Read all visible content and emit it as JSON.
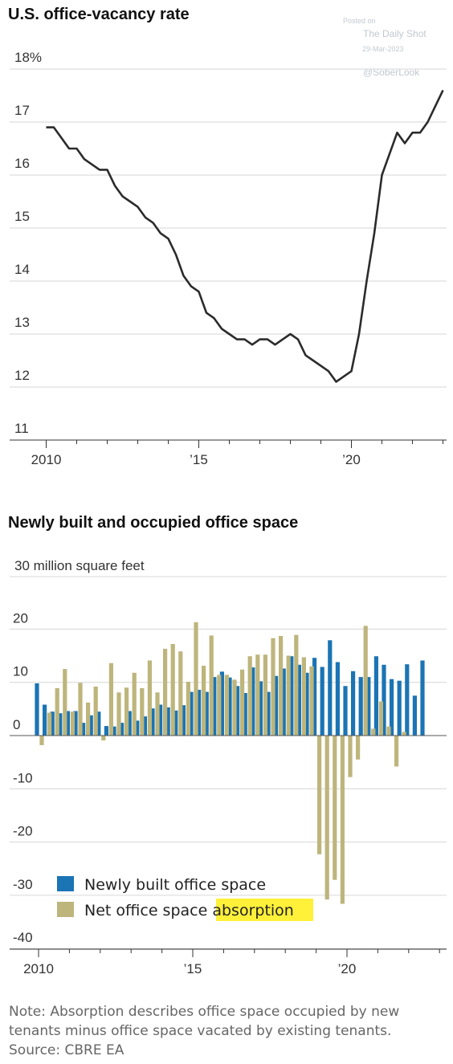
{
  "chart_data": [
    {
      "type": "line",
      "title": "U.S. office-vacancy rate",
      "ylim": [
        11,
        18
      ],
      "y_ticks": [
        "11",
        "12",
        "13",
        "14",
        "15",
        "16",
        "17",
        "18%"
      ],
      "x_ticks": [
        "2010",
        "’15",
        "’20"
      ],
      "grid": true,
      "series": [
        {
          "x": [
            2010.0,
            2010.25,
            2010.5,
            2010.75,
            2011.0,
            2011.25,
            2011.5,
            2011.75,
            2012.0,
            2012.25,
            2012.5,
            2012.75,
            2013.0,
            2013.25,
            2013.5,
            2013.75,
            2014.0,
            2014.25,
            2014.5,
            2014.75,
            2015.0,
            2015.25,
            2015.5,
            2015.75,
            2016.0,
            2016.25,
            2016.5,
            2016.75,
            2017.0,
            2017.25,
            2017.5,
            2017.75,
            2018.0,
            2018.25,
            2018.5,
            2018.75,
            2019.0,
            2019.25,
            2019.5,
            2019.75,
            2020.0,
            2020.25,
            2020.5,
            2020.75,
            2021.0,
            2021.25,
            2021.5,
            2021.75,
            2022.0,
            2022.25,
            2022.5,
            2022.75,
            2023.0
          ],
          "values": [
            16.9,
            16.9,
            16.7,
            16.5,
            16.5,
            16.3,
            16.2,
            16.1,
            16.1,
            15.8,
            15.6,
            15.5,
            15.4,
            15.2,
            15.1,
            14.9,
            14.8,
            14.5,
            14.1,
            13.9,
            13.8,
            13.4,
            13.3,
            13.1,
            13.0,
            12.9,
            12.9,
            12.8,
            12.9,
            12.9,
            12.8,
            12.9,
            13.0,
            12.9,
            12.6,
            12.5,
            12.4,
            12.3,
            12.1,
            12.2,
            12.3,
            13.0,
            14.0,
            14.9,
            16.0,
            16.4,
            16.8,
            16.6,
            16.8,
            16.8,
            17.0,
            17.3,
            17.6
          ]
        }
      ]
    },
    {
      "type": "bar",
      "title": "Newly built and occupied office space",
      "ylabel": "30 million square feet",
      "ylim": [
        -40,
        30
      ],
      "y_ticks": [
        "-40",
        "-30",
        "-20",
        "-10",
        "0",
        "10",
        "20"
      ],
      "x_ticks": [
        "2010",
        "’15",
        "’20"
      ],
      "grid": true,
      "x_start": 2010.0,
      "x_step": 0.25,
      "series": [
        {
          "name": "Newly built office space",
          "color": "#1b74b4",
          "values": [
            9.8,
            5.8,
            4.5,
            4.2,
            4.6,
            4.6,
            2.4,
            3.8,
            4.5,
            1.8,
            1.7,
            2.4,
            4.6,
            2.8,
            3.6,
            5.1,
            5.8,
            5.3,
            4.7,
            5.7,
            8.2,
            8.6,
            8.2,
            11.0,
            12.0,
            10.9,
            9.3,
            8.0,
            12.8,
            10.2,
            8.2,
            11.2,
            12.6,
            14.9,
            13.3,
            11.8,
            14.6,
            12.9,
            17.9,
            13.8,
            9.3,
            12.1,
            11.0,
            11.0,
            14.9,
            13.3,
            10.6,
            10.3,
            13.4,
            7.5,
            14.1
          ]
        },
        {
          "name": "Net office space absorption",
          "color": "#bdb57c",
          "values": [
            -1.8,
            4.3,
            8.9,
            12.5,
            4.5,
            9.9,
            6.2,
            9.2,
            -0.9,
            13.6,
            8.1,
            9.0,
            11.8,
            8.9,
            14.1,
            8.1,
            16.3,
            17.2,
            15.8,
            10.1,
            21.3,
            13.1,
            18.8,
            11.4,
            11.4,
            10.5,
            12.4,
            14.9,
            15.2,
            15.2,
            18.3,
            18.7,
            15.0,
            18.9,
            14.7,
            13.0,
            -22.3,
            -30.8,
            -27.1,
            -31.6,
            -7.8,
            -4.5,
            20.6,
            1.3,
            6.4,
            1.7,
            -5.8,
            0.7
          ]
        }
      ],
      "legend": "bottom-left"
    }
  ],
  "watermark": {
    "posted_on": "Posted on",
    "site": "The Daily Shot",
    "date": "29-Mar-2023",
    "handle": "@SoberLook"
  },
  "note": "Note: Absorption describes office space occupied by new tenants minus office space vacated by existing tenants.",
  "source": "Source: CBRE EA",
  "colors": {
    "line": "#2b2b2b",
    "grid": "#d6d6d6",
    "highlight": "#fff03a"
  }
}
